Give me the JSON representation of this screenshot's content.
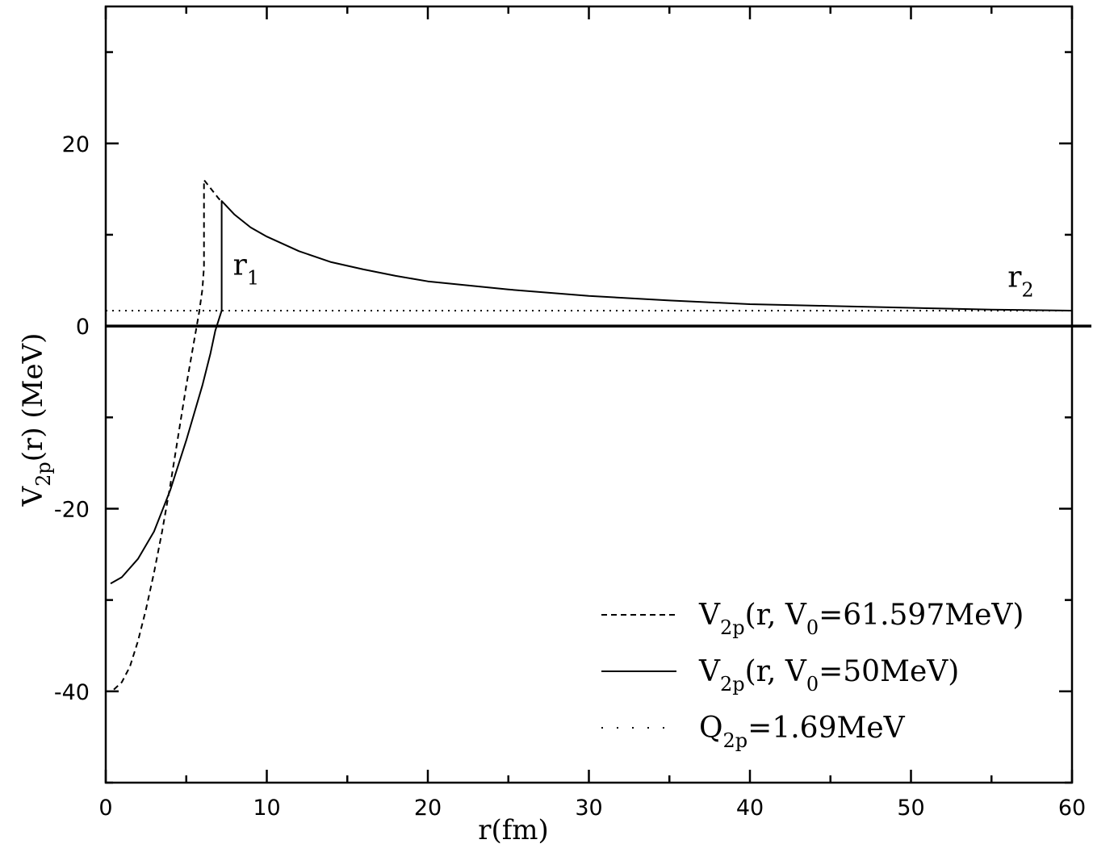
{
  "chart_data": {
    "type": "line",
    "xlabel": "r(fm)",
    "ylabel": {
      "main": "V",
      "sub": "2p",
      "rest": "(r) (MeV)"
    },
    "xlim": [
      0,
      60
    ],
    "ylim": [
      -50,
      35
    ],
    "x_ticks": [
      0,
      10,
      20,
      30,
      40,
      50,
      60
    ],
    "y_ticks": [
      -40,
      -20,
      0,
      20
    ],
    "x_tick_labels": [
      "0",
      "10",
      "20",
      "30",
      "40",
      "50",
      "60"
    ],
    "y_tick_labels": [
      "-40",
      "-20",
      "0",
      "20"
    ],
    "zero_line": true,
    "grid": false,
    "legend_position": "bottom-right",
    "annotations": [
      {
        "id": "r1",
        "main": "r",
        "sub": "1",
        "x": 7.9,
        "y": 5.6
      },
      {
        "id": "r2",
        "main": "r",
        "sub": "2",
        "x": 56.0,
        "y": 4.3
      }
    ],
    "series": [
      {
        "id": "v0-61",
        "legend": {
          "main": "V",
          "sub1": "2p",
          "mid": "(r, V",
          "sub2": "0",
          "tail": "=61.597MeV)"
        },
        "style": "dashed",
        "color": "#000000",
        "x": [
          0.5,
          1.0,
          1.5,
          2.0,
          2.5,
          3.0,
          3.5,
          4.0,
          4.5,
          5.0,
          5.5,
          5.8,
          6.0,
          6.1,
          6.1,
          7.0,
          7.2
        ],
        "y": [
          -39.8,
          -39.0,
          -37.3,
          -34.5,
          -31.0,
          -27.0,
          -22.5,
          -17.5,
          -12.0,
          -6.5,
          -1.5,
          1.5,
          4.0,
          6.5,
          16.0,
          14.0,
          13.6
        ]
      },
      {
        "id": "v0-50",
        "legend": {
          "main": "V",
          "sub1": "2p",
          "mid": "(r, V",
          "sub2": "0",
          "tail": "=50MeV)"
        },
        "style": "solid",
        "color": "#000000",
        "x": [
          0.3,
          1.0,
          2.0,
          3.0,
          4.0,
          5.0,
          6.0,
          6.5,
          6.8,
          7.2,
          7.2,
          8.0,
          9.0,
          10.0,
          12.0,
          14.0,
          16.0,
          18.0,
          20.0,
          25.0,
          30.0,
          35.0,
          40.0,
          45.0,
          50.0,
          55.0,
          60.0
        ],
        "y": [
          -28.2,
          -27.5,
          -25.5,
          -22.5,
          -18.0,
          -12.5,
          -6.5,
          -3.0,
          -0.5,
          1.7,
          13.7,
          12.2,
          10.8,
          9.8,
          8.2,
          7.0,
          6.2,
          5.5,
          4.9,
          4.0,
          3.3,
          2.8,
          2.4,
          2.2,
          2.0,
          1.8,
          1.69
        ]
      },
      {
        "id": "q2p",
        "legend": {
          "main": "Q",
          "sub1": "2p",
          "mid": "=1.69MeV",
          "sub2": "",
          "tail": ""
        },
        "style": "dotted",
        "color": "#000000",
        "x": [
          0,
          60
        ],
        "y": [
          1.69,
          1.69
        ]
      }
    ]
  }
}
